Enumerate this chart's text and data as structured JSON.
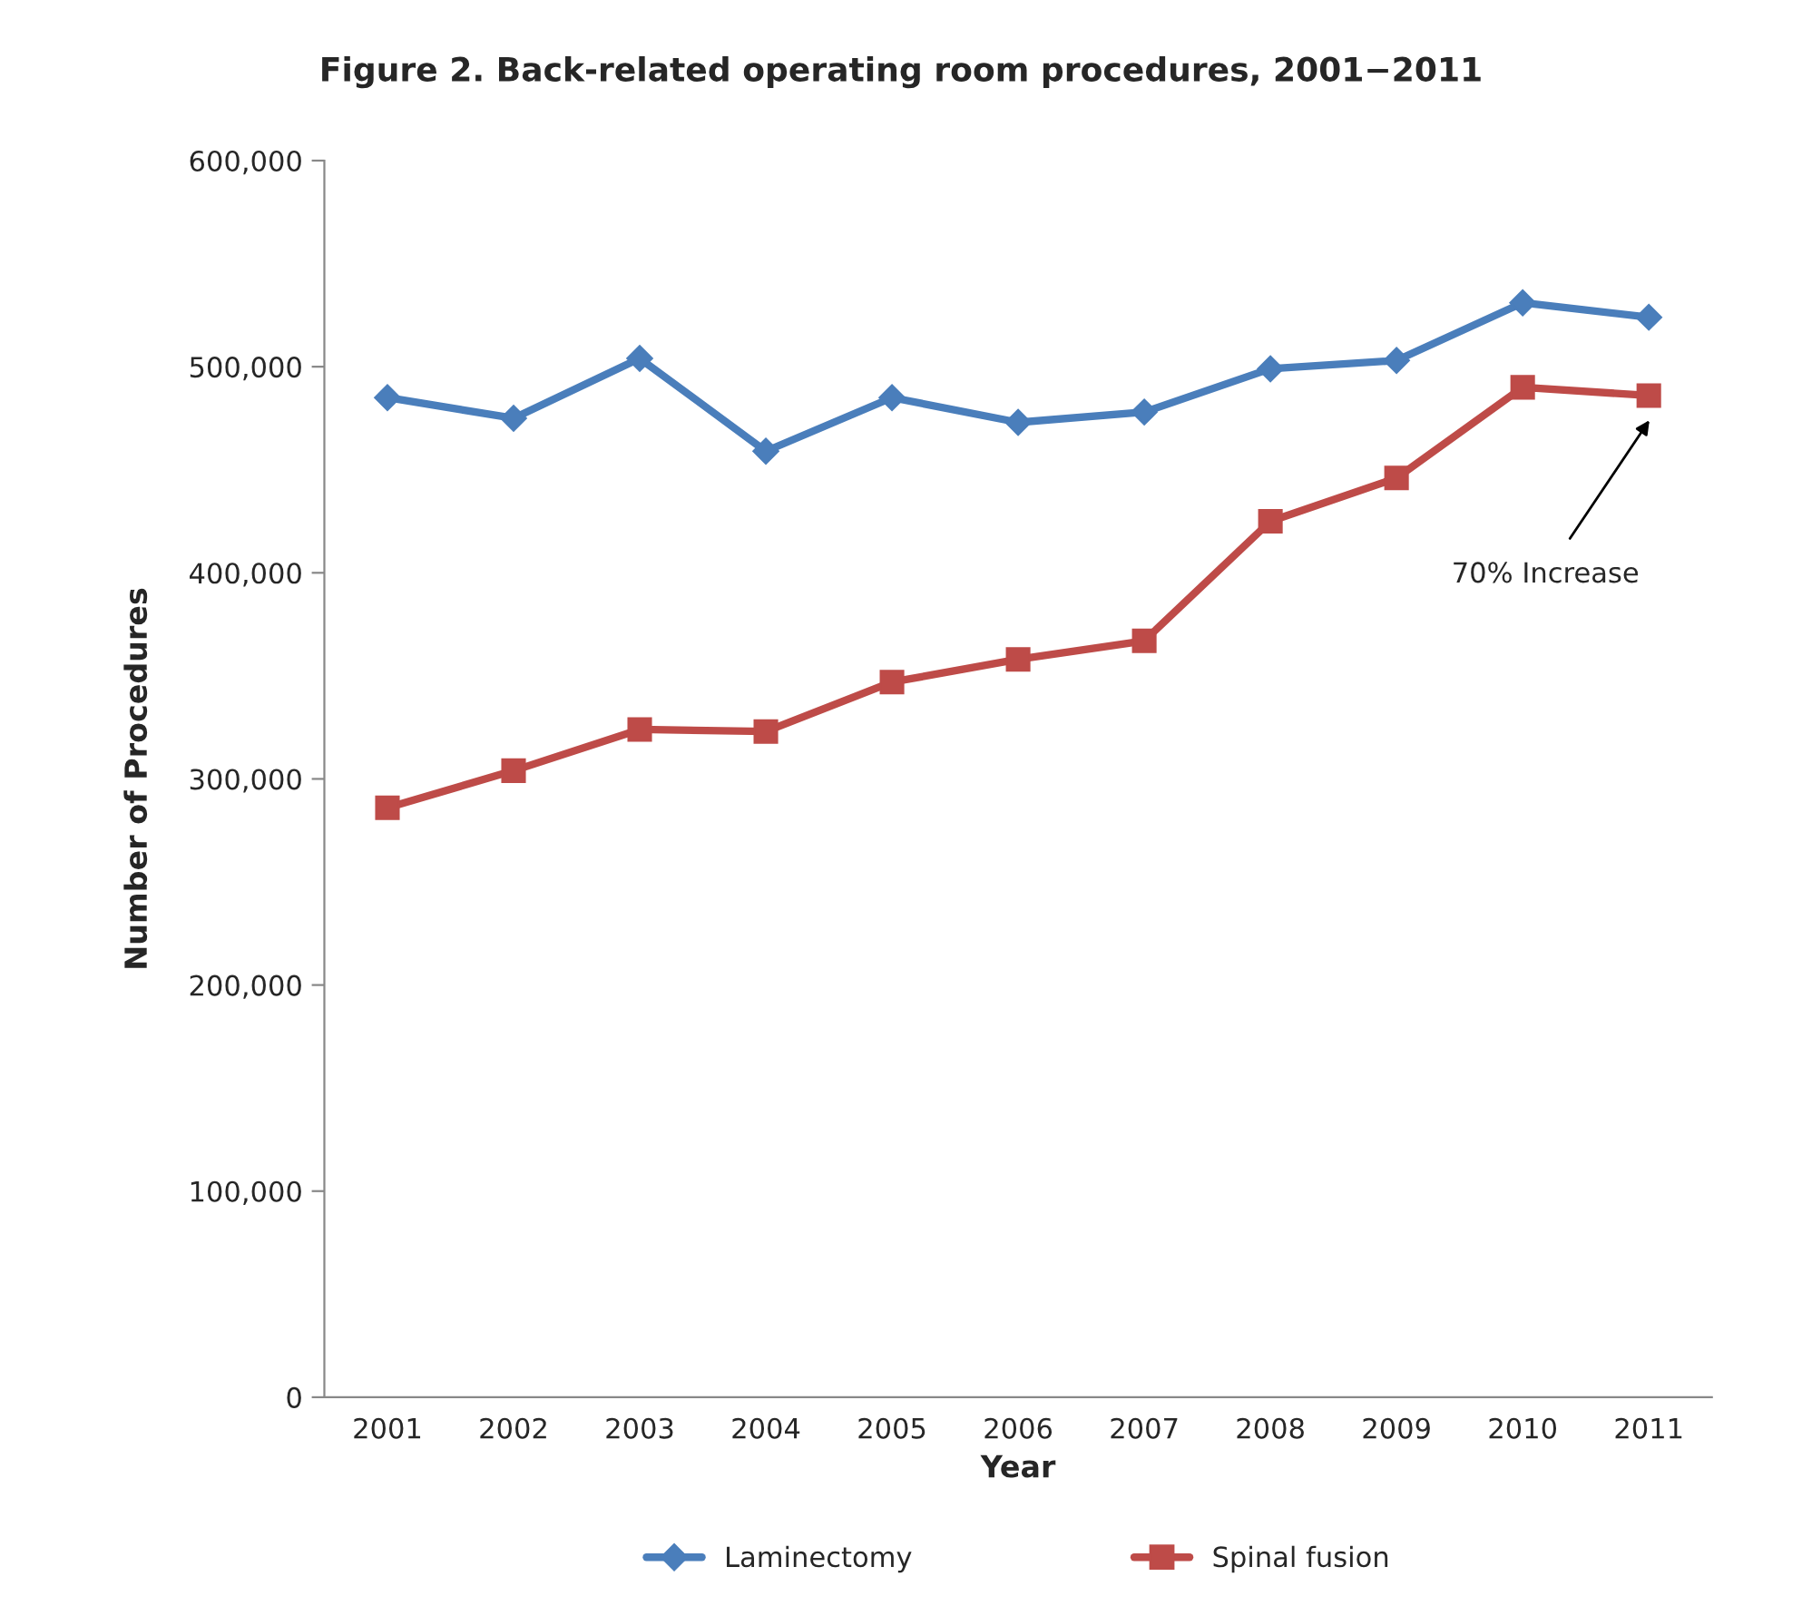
{
  "chart_data": {
    "type": "line",
    "title": "Figure 2. Back-related operating room procedures, 2001−2011",
    "xlabel": "Year",
    "ylabel": "Number of Procedures",
    "categories": [
      "2001",
      "2002",
      "2003",
      "2004",
      "2005",
      "2006",
      "2007",
      "2008",
      "2009",
      "2010",
      "2011"
    ],
    "series": [
      {
        "name": "Laminectomy",
        "color": "#4a7ebb",
        "marker": "diamond",
        "values": [
          485000,
          475000,
          504000,
          459000,
          485000,
          473000,
          478000,
          499000,
          503000,
          531000,
          524000
        ]
      },
      {
        "name": "Spinal fusion",
        "color": "#be4b48",
        "marker": "square",
        "values": [
          286000,
          304000,
          324000,
          323000,
          347000,
          358000,
          367000,
          425000,
          446000,
          490000,
          486000
        ]
      }
    ],
    "ylim": [
      0,
      600000
    ],
    "yticks": [
      {
        "value": 0,
        "label": "0"
      },
      {
        "value": 100000,
        "label": "100,000"
      },
      {
        "value": 200000,
        "label": "200,000"
      },
      {
        "value": 300000,
        "label": "300,000"
      },
      {
        "value": 400000,
        "label": "400,000"
      },
      {
        "value": 500000,
        "label": "500,000"
      },
      {
        "value": 600000,
        "label": "600,000"
      }
    ],
    "annotations": [
      "70% Increase"
    ],
    "legend": "bottom",
    "grid": false,
    "line_style": "solid"
  }
}
